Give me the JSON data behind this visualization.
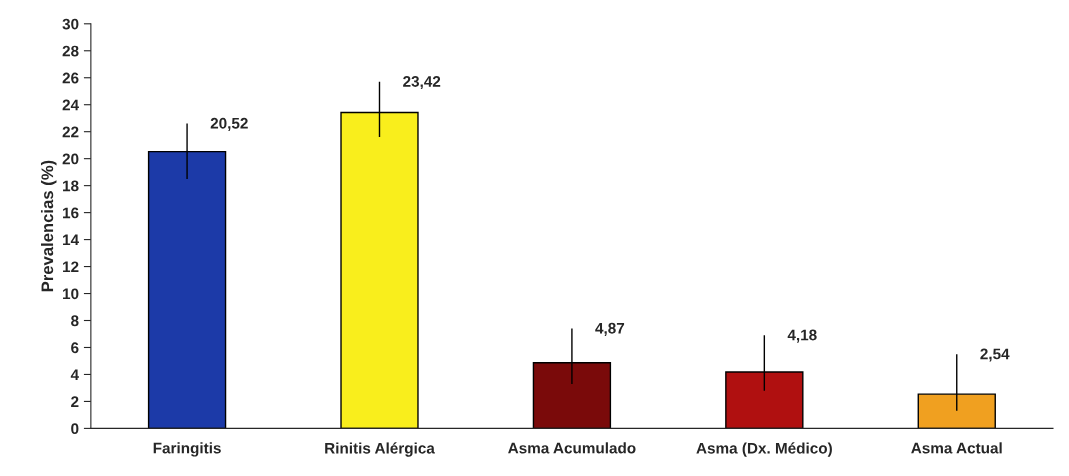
{
  "chart_data": {
    "type": "bar",
    "ylabel": "Prevalencias (%)",
    "categories": [
      "Faringitis",
      "Rinitis Alérgica",
      "Asma Acumulado",
      "Asma (Dx. Médico)",
      "Asma Actual"
    ],
    "values": [
      20.52,
      23.42,
      4.87,
      4.18,
      2.54
    ],
    "colors": [
      "#1c3aa8",
      "#f9ee1c",
      "#7a0a0a",
      "#b01010",
      "#f0a020"
    ],
    "value_labels": [
      "20,52",
      "23,42",
      "4,87",
      "4,18",
      "2,54"
    ],
    "errors": [
      [
        18.5,
        22.6
      ],
      [
        21.6,
        25.7
      ],
      [
        3.3,
        7.4
      ],
      [
        2.8,
        6.9
      ],
      [
        1.3,
        5.5
      ]
    ],
    "ylim": [
      0,
      30
    ],
    "yticks": [
      0,
      2,
      4,
      6,
      8,
      10,
      12,
      14,
      16,
      18,
      20,
      22,
      24,
      26,
      28,
      30
    ],
    "grid": false
  }
}
